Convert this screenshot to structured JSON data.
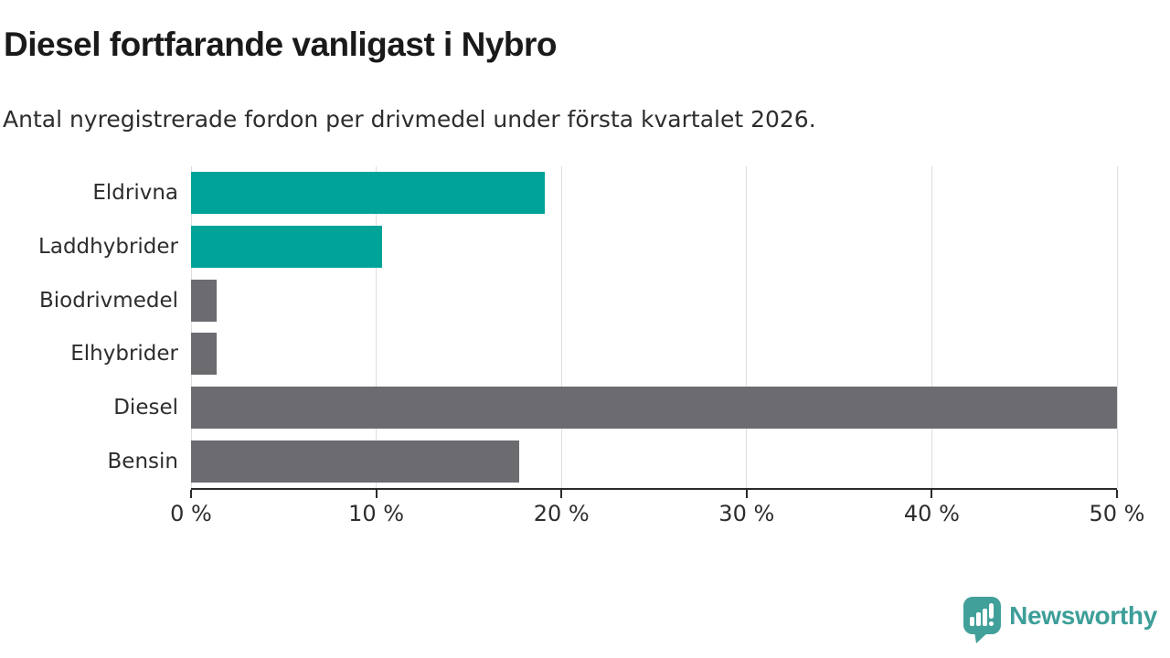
{
  "chart": {
    "title": "Diesel fortfarande vanligast i Nybro",
    "subtitle": "Antal nyregistrerade fordon per drivmedel under första kvartalet 2026."
  },
  "chart_data": {
    "type": "bar",
    "orientation": "horizontal",
    "title": "Diesel fortfarande vanligast i Nybro",
    "subtitle": "Antal nyregistrerade fordon per drivmedel under första kvartalet 2026.",
    "categories": [
      "Eldrivna",
      "Laddhybrider",
      "Biodrivmedel",
      "Elhybrider",
      "Diesel",
      "Bensin"
    ],
    "values": [
      19.1,
      10.3,
      1.4,
      1.4,
      50.0,
      17.7
    ],
    "unit": "%",
    "bar_colors": [
      "#00a398",
      "#00a398",
      "#6b6b70",
      "#6b6b70",
      "#6b6b70",
      "#6b6b70"
    ],
    "xlabel": "",
    "ylabel": "",
    "xlim": [
      0,
      50
    ],
    "x_ticks": [
      0,
      10,
      20,
      30,
      40,
      50
    ],
    "x_tick_labels": [
      "0 %",
      "10 %",
      "20 %",
      "30 %",
      "40 %",
      "50 %"
    ],
    "grid": "vertical-gridlines-on",
    "legend": "none"
  },
  "colors": {
    "accent_teal": "#00a398",
    "bar_gray": "#6b6b70",
    "gridline": "#dedede",
    "axis": "#2b2b2b",
    "title_text": "#1a1a1a",
    "body_text": "#2d2d2d",
    "logo_teal": "#42a09b"
  },
  "branding": {
    "name": "Newsworthy",
    "icon": "newsworthy-speech-bubble-bar-chart-icon"
  }
}
